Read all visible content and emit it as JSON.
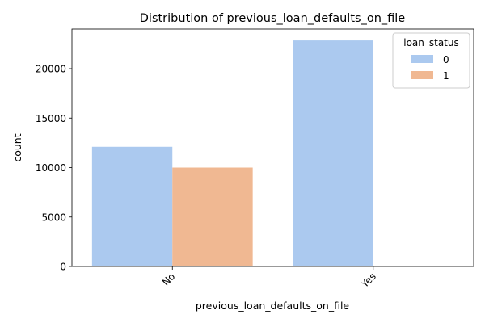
{
  "chart_data": {
    "type": "bar",
    "title": "Distribution of previous_loan_defaults_on_file",
    "xlabel": "previous_loan_defaults_on_file",
    "ylabel": "count",
    "categories": [
      "No",
      "Yes"
    ],
    "series": [
      {
        "name": "0",
        "values": [
          12100,
          22850
        ],
        "color": "#abc9ef"
      },
      {
        "name": "1",
        "values": [
          10000,
          0
        ],
        "color": "#f0b892"
      }
    ],
    "ylim": [
      0,
      24000
    ],
    "yticks": [
      0,
      5000,
      10000,
      15000,
      20000
    ],
    "legend": {
      "title": "loan_status",
      "placement": "top-right"
    },
    "grid": false,
    "x_tick_rotation": 45
  }
}
